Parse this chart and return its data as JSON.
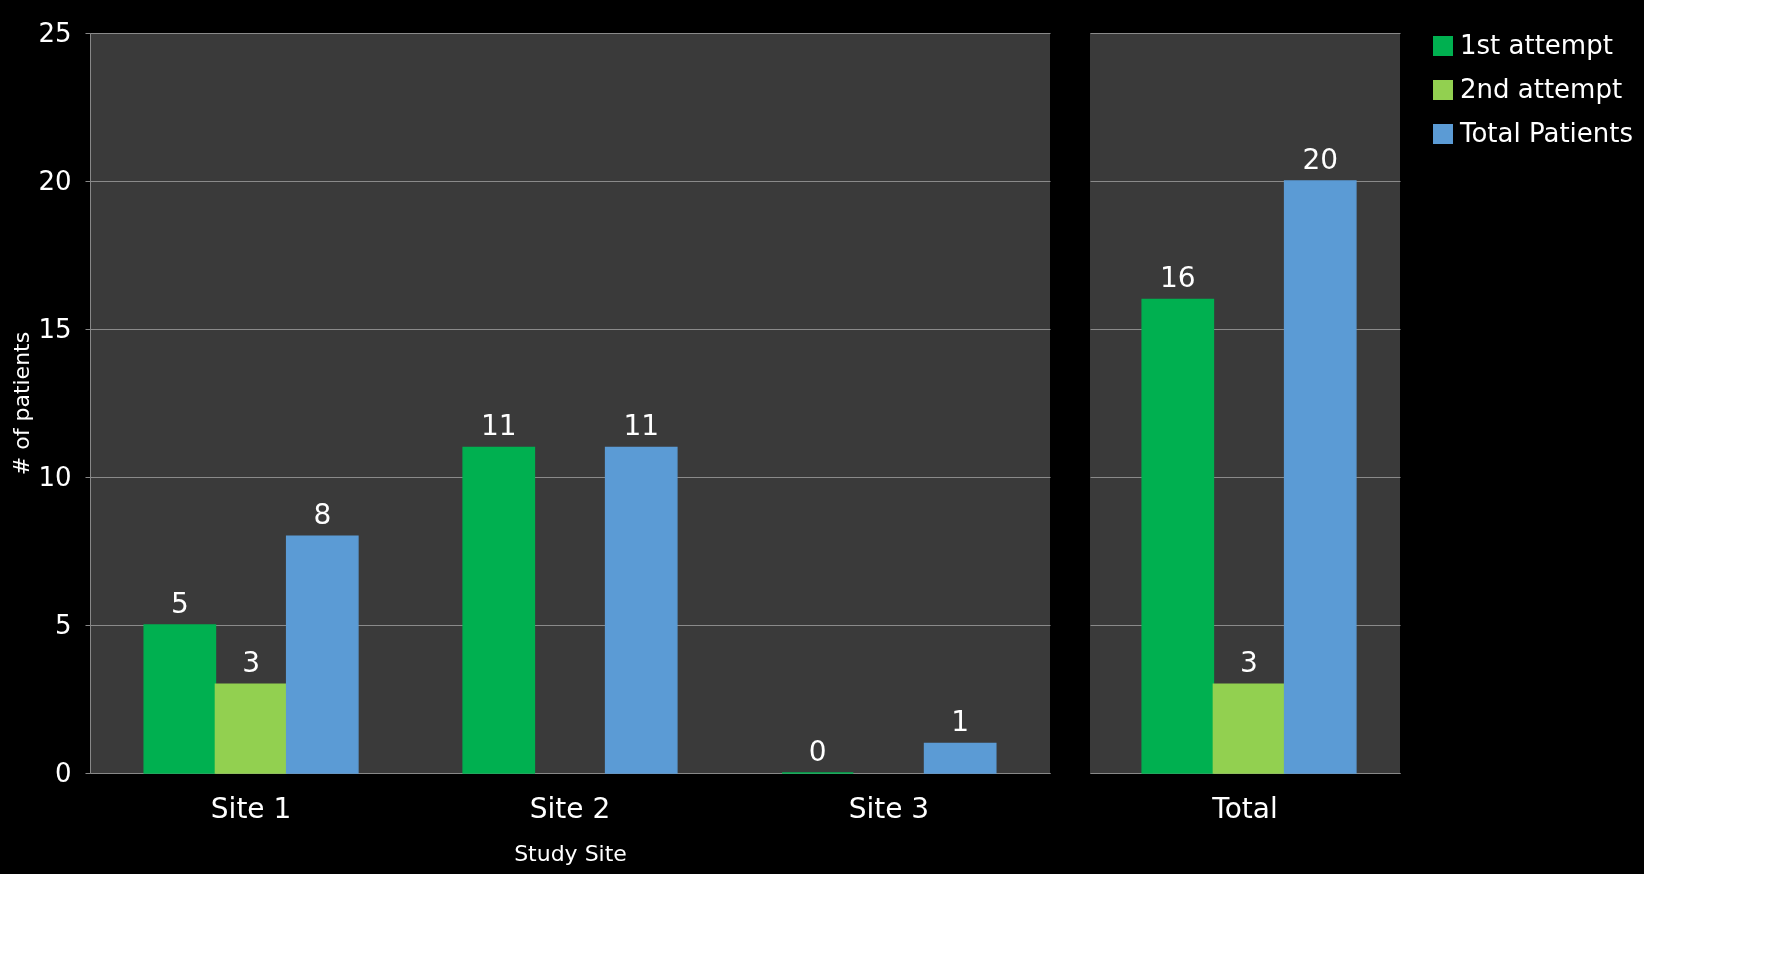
{
  "chart_data": [
    {
      "type": "bar",
      "categories": [
        "Site 1",
        "Site 2",
        "Site 3"
      ],
      "xlabel": "Study Site",
      "ylabel": "# of patients",
      "ylim": [
        0,
        25
      ],
      "yticks": [
        0,
        5,
        10,
        15,
        20,
        25
      ],
      "grid": "y",
      "data_labels": true,
      "legend": "right",
      "series": [
        {
          "color": "#00b050",
          "values": [
            5,
            11,
            0
          ]
        },
        {
          "color": "#92d050",
          "values": [
            3,
            null,
            null
          ]
        },
        {
          "color": "#5b9bd5",
          "values": [
            8,
            11,
            1
          ]
        }
      ]
    },
    {
      "type": "bar",
      "categories": [
        "Total"
      ],
      "ylim": [
        0,
        25
      ],
      "yticks": [
        0,
        5,
        10,
        15,
        20,
        25
      ],
      "grid": "y",
      "data_labels": true,
      "legend": "right",
      "tick_labels": "x",
      "series": [
        {
          "name": "1st attempt",
          "color": "#00b050",
          "values": [
            16
          ]
        },
        {
          "name": "2nd attempt",
          "color": "#92d050",
          "values": [
            3
          ]
        },
        {
          "name": "Total Patients",
          "color": "#5b9bd5",
          "values": [
            20
          ]
        }
      ]
    }
  ]
}
